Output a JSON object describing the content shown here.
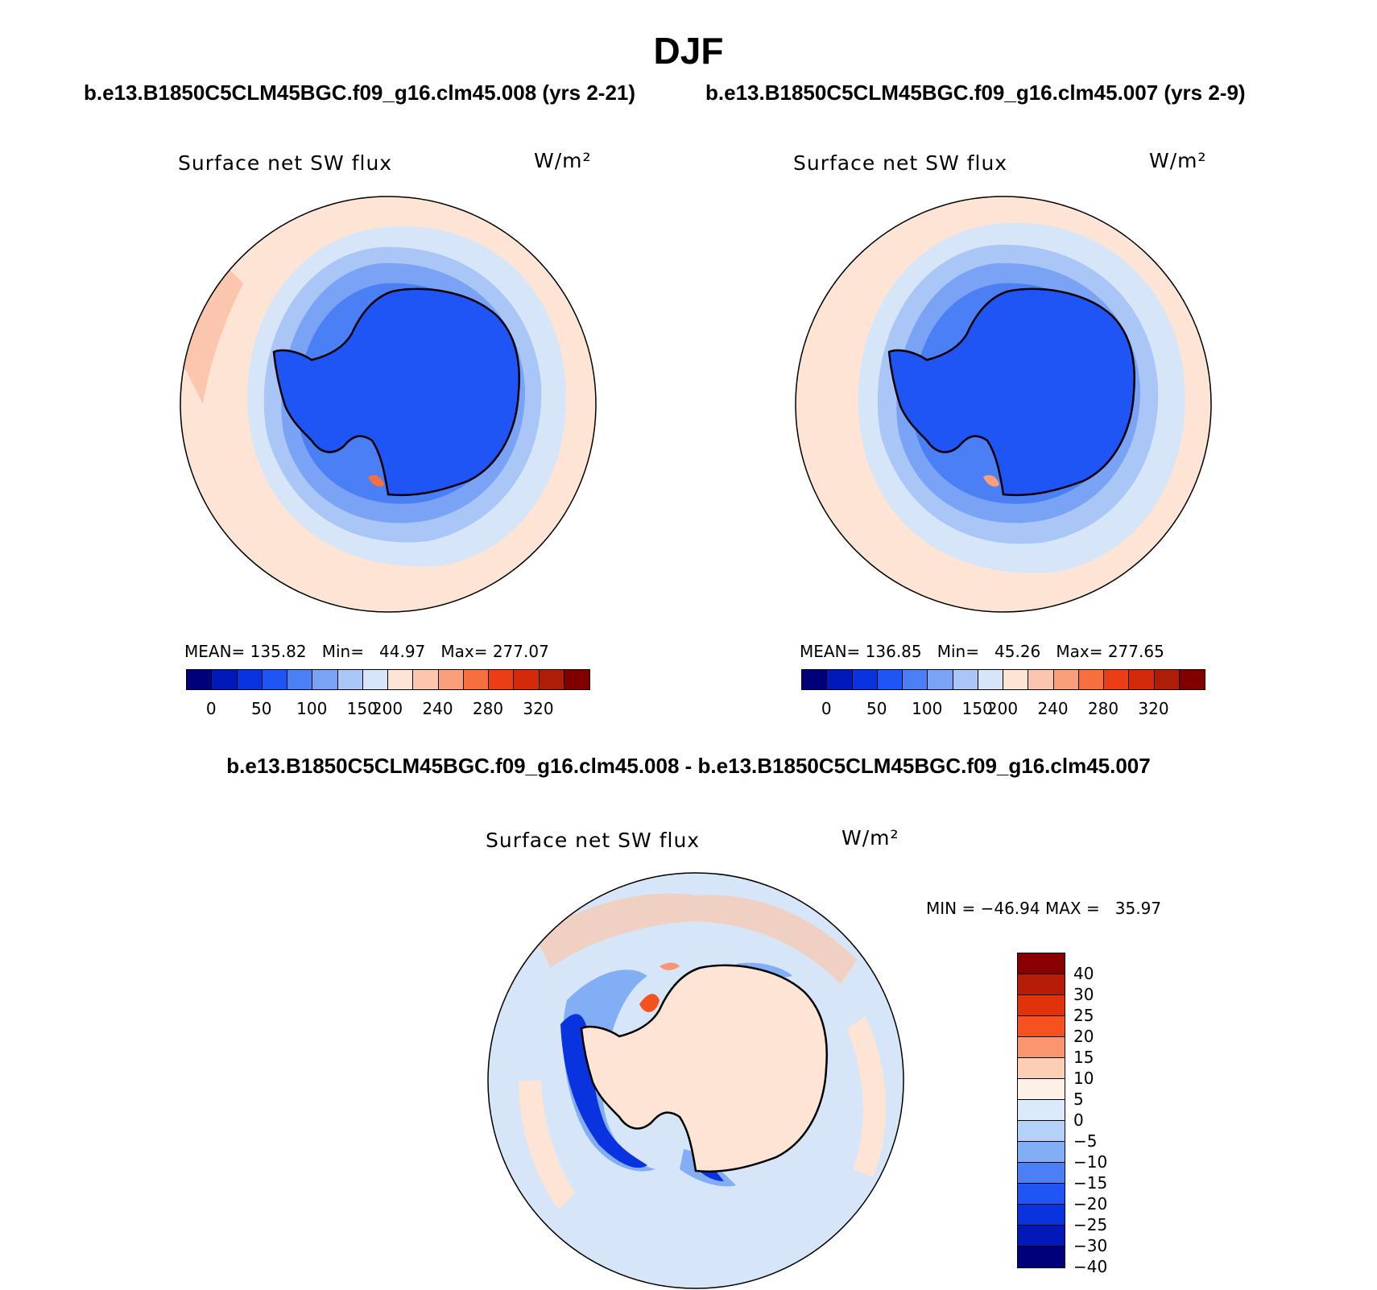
{
  "page": {
    "season": "DJF"
  },
  "panels": {
    "left": {
      "case": "b.e13.B1850C5CLM45BGC.f09_g16.clm45.008 (yrs 2-21)",
      "variable": "Surface net SW flux",
      "units": "W/m²",
      "stats": "MEAN= 135.82   Min=   44.97   Max= 277.07"
    },
    "right": {
      "case": "b.e13.B1850C5CLM45BGC.f09_g16.clm45.007 (yrs 2-9)",
      "variable": "Surface net SW flux",
      "units": "W/m²",
      "stats": "MEAN= 136.85   Min=   45.26   Max= 277.65"
    },
    "diff": {
      "title": "b.e13.B1850C5CLM45BGC.f09_g16.clm45.008 - b.e13.B1850C5CLM45BGC.f09_g16.clm45.007",
      "variable": "Surface net SW flux",
      "units": "W/m²",
      "stats": "MIN = −46.94 MAX =   35.97"
    }
  },
  "colorbar_abs": {
    "colors": [
      "#00007a",
      "#0019b8",
      "#0a33e0",
      "#1f55f5",
      "#4a7ff5",
      "#7ba3f5",
      "#a9c6f7",
      "#d6e6f8",
      "#fde4d4",
      "#fbc6ad",
      "#f99f7a",
      "#f56f3f",
      "#eb3e16",
      "#d22a0b",
      "#ad1e08",
      "#800000"
    ],
    "labels": [
      "0",
      "50",
      "100",
      "150",
      "200",
      "240",
      "280",
      "320"
    ]
  },
  "colorbar_diff": {
    "colors": [
      "#8a0000",
      "#b71c08",
      "#e0330c",
      "#f5521f",
      "#f99670",
      "#fcceb3",
      "#fdf0e6",
      "#dbe9fa",
      "#b6d1f9",
      "#82aef5",
      "#4a7ff5",
      "#1f55f5",
      "#0a33e0",
      "#0019b8",
      "#00007a"
    ],
    "labels": [
      "40",
      "30",
      "25",
      "20",
      "15",
      "10",
      "5",
      "0",
      "−5",
      "−10",
      "−15",
      "−20",
      "−25",
      "−30",
      "−40"
    ]
  },
  "map_colors": {
    "ocean_warm": "#fde4d4",
    "ocean_warm2": "#fbc6ad",
    "ice_light": "#d6e6f8",
    "ice_mid": "#a9c6f7",
    "ice_blue": "#7ba3f5",
    "ice_deep": "#4a7ff5",
    "continent": "#1f55f5",
    "diff_land": "#fde4d4",
    "diff_neg": "#82aef5",
    "diff_neg_strong": "#0a33e0",
    "diff_pos": "#f5521f"
  }
}
